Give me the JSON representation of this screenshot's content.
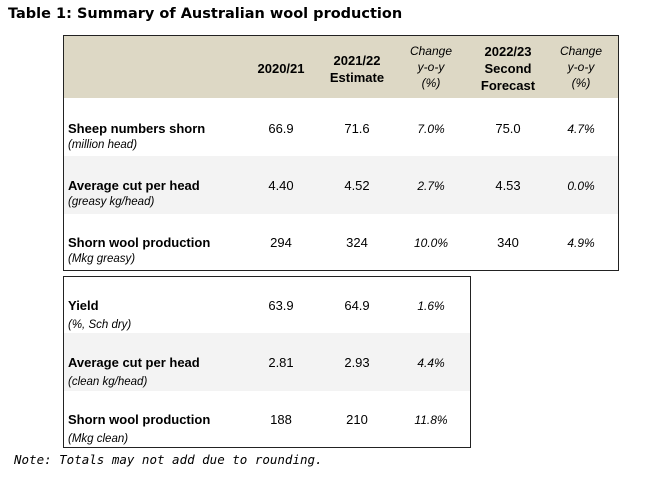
{
  "title": "Table 1: Summary of Australian wool production",
  "headers": {
    "col1": "2020/21",
    "col2_line1": "2021/22",
    "col2_line2": "Estimate",
    "col3_line1": "Change",
    "col3_line2": "y-o-y",
    "col3_line3": "(%)",
    "col4_line1": "2022/23",
    "col4_line2": "Second",
    "col4_line3": "Forecast",
    "col5_line1": "Change",
    "col5_line2": "y-o-y",
    "col5_line3": "(%)"
  },
  "greasy_rows": [
    {
      "label": "Sheep numbers shorn",
      "unit": "(million head)",
      "v2020": "66.9",
      "v2021": "71.6",
      "chg1": "7.0%",
      "v2022": "75.0",
      "chg2": "4.7%"
    },
    {
      "label": "Average cut per head",
      "unit": "(greasy kg/head)",
      "v2020": "4.40",
      "v2021": "4.52",
      "chg1": "2.7%",
      "v2022": "4.53",
      "chg2": "0.0%"
    },
    {
      "label": "Shorn wool production",
      "unit": "(Mkg greasy)",
      "v2020": "294",
      "v2021": "324",
      "chg1": "10.0%",
      "v2022": "340",
      "chg2": "4.9%"
    }
  ],
  "clean_rows": [
    {
      "label": "Yield",
      "unit": "(%, Sch dry)",
      "v2020": "63.9",
      "v2021": "64.9",
      "chg1": "1.6%"
    },
    {
      "label": "Average cut per head",
      "unit": "(clean kg/head)",
      "v2020": "2.81",
      "v2021": "2.93",
      "chg1": "4.4%"
    },
    {
      "label": "Shorn wool production",
      "unit": "(Mkg clean)",
      "v2020": "188",
      "v2021": "210",
      "chg1": "11.8%"
    }
  ],
  "note": "Note: Totals may not add due to rounding.",
  "colors": {
    "header_bg": "#ddd8c5",
    "band_bg": "#f3f3f3",
    "border": "#222222"
  }
}
